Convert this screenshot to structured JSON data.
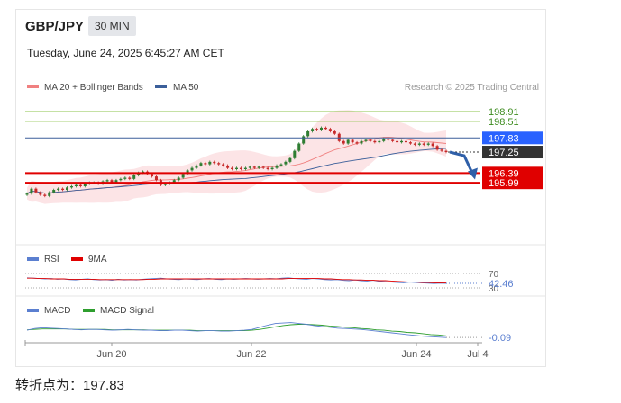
{
  "header": {
    "symbol": "GBP/JPY",
    "timeframe": "30 MIN",
    "datetime": "Tuesday, June 24, 2025 6:45:27 AM CET"
  },
  "colors": {
    "ma20": "#f08080",
    "ma50": "#3b5f9a",
    "up_candle": "#2e7d32",
    "down_candle": "#c62828",
    "bollinger_fill": "#fbd5d8",
    "resistance": "#8bc34a",
    "pivot": "#2962ff",
    "support": "#e00000",
    "last_price": "#333333",
    "rsi": "#5b7fd0",
    "rsi_ma": "#e00000",
    "macd": "#5b7fd0",
    "macd_signal": "#2e9e2e"
  },
  "footer": {
    "text": "转折点为：197.83"
  },
  "chart_data": [
    {
      "type": "line",
      "subtype": "candlestick",
      "panel": "price",
      "legend": [
        "MA 20 + Bollinger Bands",
        "MA 50"
      ],
      "attribution": "Research © 2025 Trading Central",
      "x_ticks": [
        "Jun 20",
        "Jun 22",
        "Jun 24",
        "Jul 4"
      ],
      "ylim": [
        193.6,
        199.5
      ],
      "levels": [
        {
          "label": "198.91",
          "value": 198.91,
          "kind": "resistance"
        },
        {
          "label": "198.51",
          "value": 198.51,
          "kind": "resistance"
        },
        {
          "label": "197.83",
          "value": 197.83,
          "kind": "pivot"
        },
        {
          "label": "197.25",
          "value": 197.25,
          "kind": "last"
        },
        {
          "label": "196.39",
          "value": 196.39,
          "kind": "support"
        },
        {
          "label": "195.99",
          "value": 195.99,
          "kind": "support"
        }
      ],
      "closes": [
        195.55,
        195.75,
        195.6,
        195.5,
        195.45,
        195.6,
        195.7,
        195.75,
        195.7,
        195.8,
        195.85,
        195.9,
        195.85,
        195.95,
        196.0,
        196.0,
        195.95,
        196.05,
        196.1,
        196.0,
        196.1,
        196.15,
        196.2,
        196.15,
        196.3,
        196.4,
        196.45,
        196.35,
        196.25,
        196.1,
        195.9,
        195.95,
        196.0,
        196.1,
        196.2,
        196.35,
        196.5,
        196.6,
        196.7,
        196.8,
        196.75,
        196.85,
        196.8,
        196.75,
        196.7,
        196.6,
        196.55,
        196.6,
        196.55,
        196.6,
        196.65,
        196.6,
        196.65,
        196.6,
        196.55,
        196.6,
        196.7,
        196.75,
        196.85,
        197.0,
        197.3,
        197.6,
        197.9,
        198.1,
        198.2,
        198.15,
        198.25,
        198.2,
        198.1,
        198.0,
        197.7,
        197.6,
        197.75,
        197.65,
        197.6,
        197.7,
        197.75,
        197.7,
        197.65,
        197.7,
        197.8,
        197.75,
        197.7,
        197.65,
        197.7,
        197.65,
        197.6,
        197.55,
        197.6,
        197.55,
        197.6,
        197.5,
        197.35,
        197.3,
        197.25
      ],
      "forecast_arrow": {
        "from": 197.25,
        "to": 196.2
      }
    },
    {
      "type": "line",
      "panel": "rsi",
      "legend": [
        "RSI",
        "9MA"
      ],
      "level_labels": [
        "70",
        "30"
      ],
      "current_label": "42.46",
      "ylim": [
        20,
        80
      ],
      "rsi": [
        58,
        57,
        56,
        55,
        56,
        54,
        55,
        53,
        52,
        54,
        55,
        53,
        52,
        53,
        51,
        54,
        52,
        53,
        52,
        54,
        55,
        56,
        57,
        55,
        54,
        53,
        55,
        54,
        53,
        55,
        56,
        54,
        53,
        55,
        54,
        55,
        56,
        55,
        54,
        55,
        56,
        55,
        57,
        58,
        56,
        55,
        54,
        56,
        55,
        53,
        52,
        53,
        51,
        50,
        52,
        50,
        49,
        51,
        48,
        47,
        46,
        45,
        44,
        46,
        45,
        44,
        43,
        42,
        43,
        42.46
      ],
      "ma9": [
        57,
        57,
        56,
        56,
        55,
        55,
        55,
        54,
        54,
        54,
        54,
        54,
        53,
        53,
        53,
        53,
        53,
        53,
        53,
        53,
        54,
        54,
        55,
        55,
        55,
        55,
        55,
        55,
        55,
        55,
        55,
        55,
        55,
        55,
        55,
        55,
        55,
        55,
        55,
        55,
        55,
        55,
        55,
        56,
        56,
        56,
        56,
        56,
        56,
        55,
        55,
        54,
        53,
        53,
        52,
        52,
        51,
        51,
        50,
        50,
        49,
        48,
        47,
        46,
        46,
        45,
        45,
        44,
        44,
        43.5
      ]
    },
    {
      "type": "line",
      "panel": "macd",
      "legend": [
        "MACD",
        "MACD Signal"
      ],
      "current_label": "-0.09",
      "ylim": [
        -0.15,
        0.4
      ],
      "macd": [
        0.08,
        0.12,
        0.14,
        0.13,
        0.12,
        0.11,
        0.1,
        0.09,
        0.1,
        0.1,
        0.09,
        0.08,
        0.09,
        0.1,
        0.09,
        0.08,
        0.08,
        0.07,
        0.07,
        0.08,
        0.08,
        0.07,
        0.06,
        0.07,
        0.07,
        0.06,
        0.06,
        0.07,
        0.08,
        0.1,
        0.15,
        0.2,
        0.24,
        0.25,
        0.26,
        0.24,
        0.22,
        0.19,
        0.17,
        0.15,
        0.13,
        0.12,
        0.11,
        0.1,
        0.08,
        0.06,
        0.04,
        0.02,
        0.0,
        -0.02,
        -0.04,
        -0.06,
        -0.07,
        -0.08,
        -0.09
      ],
      "signal": [
        0.09,
        0.1,
        0.11,
        0.11,
        0.11,
        0.11,
        0.1,
        0.1,
        0.1,
        0.1,
        0.1,
        0.09,
        0.09,
        0.09,
        0.09,
        0.09,
        0.08,
        0.08,
        0.08,
        0.08,
        0.08,
        0.08,
        0.07,
        0.07,
        0.07,
        0.07,
        0.07,
        0.07,
        0.07,
        0.08,
        0.1,
        0.13,
        0.16,
        0.19,
        0.21,
        0.22,
        0.22,
        0.21,
        0.2,
        0.18,
        0.17,
        0.15,
        0.14,
        0.12,
        0.11,
        0.09,
        0.08,
        0.06,
        0.05,
        0.03,
        0.02,
        0.0,
        -0.02,
        -0.03,
        -0.05
      ]
    }
  ]
}
